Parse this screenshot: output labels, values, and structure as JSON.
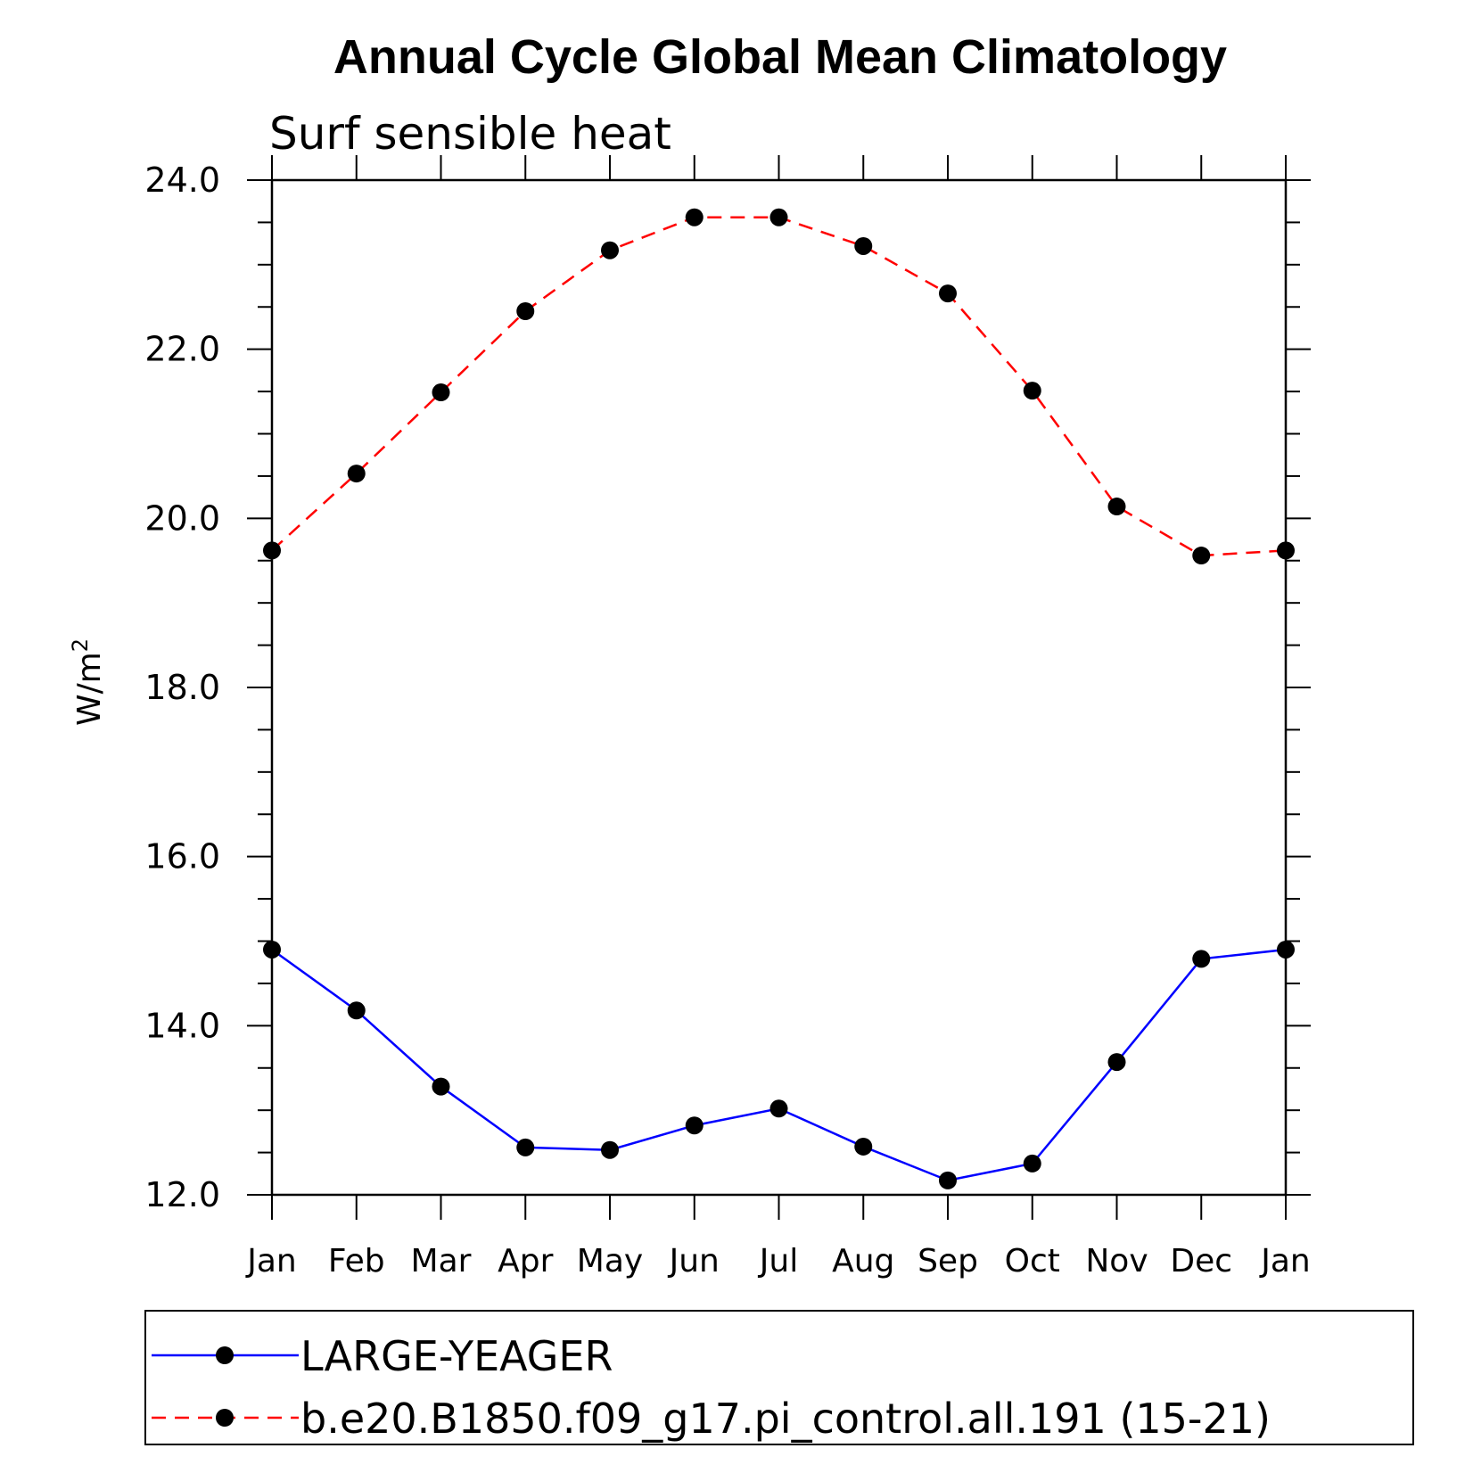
{
  "chart_data": {
    "type": "line",
    "title": "Annual Cycle Global Mean Climatology",
    "subtitle": "Surf sensible heat",
    "ylabel": "W/m",
    "ylabel_superscript": "2",
    "xlabel": "",
    "categories": [
      "Jan",
      "Feb",
      "Mar",
      "Apr",
      "May",
      "Jun",
      "Jul",
      "Aug",
      "Sep",
      "Oct",
      "Nov",
      "Dec",
      "Jan"
    ],
    "ylim": [
      12.0,
      24.0
    ],
    "yticks": [
      "12.0",
      "14.0",
      "16.0",
      "18.0",
      "20.0",
      "22.0",
      "24.0"
    ],
    "grid": false,
    "legend_position": "bottom",
    "series": [
      {
        "name": "LARGE-YEAGER",
        "color": "#0000ff",
        "dash": "solid",
        "marker": "filled-circle",
        "values": [
          14.9,
          14.18,
          13.28,
          12.56,
          12.53,
          12.82,
          13.02,
          12.57,
          12.17,
          12.37,
          13.57,
          14.79,
          14.9
        ]
      },
      {
        "name": "b.e20.B1850.f09_g17.pi_control.all.191 (15-21)",
        "color": "#ff0000",
        "dash": "dashed",
        "marker": "filled-circle",
        "values": [
          19.62,
          20.53,
          21.49,
          22.45,
          23.17,
          23.56,
          23.56,
          23.22,
          22.66,
          21.51,
          20.14,
          19.56,
          19.62
        ]
      }
    ]
  }
}
